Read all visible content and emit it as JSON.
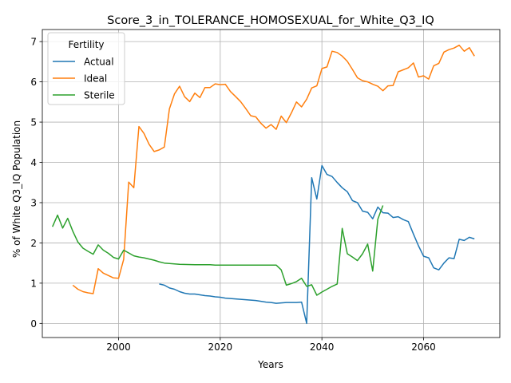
{
  "chart_data": {
    "type": "line",
    "title": "Score_3_in_TOLERANCE_HOMOSEXUAL_for_White_Q3_IQ",
    "xlabel": "Years",
    "ylabel": "% of White Q3_IQ Population",
    "xlim": [
      1985,
      2075
    ],
    "ylim": [
      -0.35,
      7.3
    ],
    "xticks": [
      2000,
      2020,
      2040,
      2060
    ],
    "yticks": [
      0,
      1,
      2,
      3,
      4,
      5,
      6,
      7
    ],
    "grid": true,
    "legend": {
      "title": "Fertility",
      "placement": "top-left"
    },
    "series": [
      {
        "name": "Actual",
        "color": "#1f77b4",
        "points": [
          [
            2008,
            0.98
          ],
          [
            2009,
            0.95
          ],
          [
            2010,
            0.88
          ],
          [
            2011,
            0.85
          ],
          [
            2012,
            0.79
          ],
          [
            2013,
            0.75
          ],
          [
            2014,
            0.73
          ],
          [
            2015,
            0.73
          ],
          [
            2016,
            0.71
          ],
          [
            2017,
            0.69
          ],
          [
            2018,
            0.68
          ],
          [
            2019,
            0.66
          ],
          [
            2020,
            0.65
          ],
          [
            2021,
            0.63
          ],
          [
            2022,
            0.62
          ],
          [
            2023,
            0.61
          ],
          [
            2024,
            0.6
          ],
          [
            2025,
            0.59
          ],
          [
            2026,
            0.58
          ],
          [
            2027,
            0.57
          ],
          [
            2028,
            0.55
          ],
          [
            2029,
            0.53
          ],
          [
            2030,
            0.52
          ],
          [
            2031,
            0.5
          ],
          [
            2032,
            0.51
          ],
          [
            2033,
            0.52
          ],
          [
            2034,
            0.52
          ],
          [
            2035,
            0.52
          ],
          [
            2036,
            0.53
          ],
          [
            2037,
            0.0
          ],
          [
            2038,
            3.62
          ],
          [
            2039,
            3.09
          ],
          [
            2040,
            3.92
          ],
          [
            2041,
            3.7
          ],
          [
            2042,
            3.65
          ],
          [
            2043,
            3.5
          ],
          [
            2044,
            3.37
          ],
          [
            2045,
            3.27
          ],
          [
            2046,
            3.05
          ],
          [
            2047,
            3.0
          ],
          [
            2048,
            2.79
          ],
          [
            2049,
            2.76
          ],
          [
            2050,
            2.6
          ],
          [
            2051,
            2.89
          ],
          [
            2052,
            2.75
          ],
          [
            2053,
            2.74
          ],
          [
            2054,
            2.63
          ],
          [
            2055,
            2.65
          ],
          [
            2056,
            2.58
          ],
          [
            2057,
            2.53
          ],
          [
            2058,
            2.22
          ],
          [
            2059,
            1.93
          ],
          [
            2060,
            1.67
          ],
          [
            2061,
            1.63
          ],
          [
            2062,
            1.38
          ],
          [
            2063,
            1.33
          ],
          [
            2064,
            1.5
          ],
          [
            2065,
            1.63
          ],
          [
            2066,
            1.61
          ],
          [
            2067,
            2.09
          ],
          [
            2068,
            2.06
          ],
          [
            2069,
            2.14
          ],
          [
            2070,
            2.1
          ]
        ]
      },
      {
        "name": "Ideal",
        "color": "#ff7f0e",
        "points": [
          [
            1991,
            0.95
          ],
          [
            1992,
            0.85
          ],
          [
            1993,
            0.79
          ],
          [
            1994,
            0.76
          ],
          [
            1995,
            0.74
          ],
          [
            1996,
            1.36
          ],
          [
            1997,
            1.25
          ],
          [
            1998,
            1.19
          ],
          [
            1999,
            1.13
          ],
          [
            2000,
            1.12
          ],
          [
            2001,
            1.59
          ],
          [
            2002,
            3.51
          ],
          [
            2003,
            3.37
          ],
          [
            2004,
            4.89
          ],
          [
            2005,
            4.72
          ],
          [
            2006,
            4.45
          ],
          [
            2007,
            4.27
          ],
          [
            2008,
            4.31
          ],
          [
            2009,
            4.38
          ],
          [
            2010,
            5.33
          ],
          [
            2011,
            5.7
          ],
          [
            2012,
            5.89
          ],
          [
            2013,
            5.63
          ],
          [
            2014,
            5.51
          ],
          [
            2015,
            5.72
          ],
          [
            2016,
            5.61
          ],
          [
            2017,
            5.86
          ],
          [
            2018,
            5.86
          ],
          [
            2019,
            5.95
          ],
          [
            2020,
            5.93
          ],
          [
            2021,
            5.94
          ],
          [
            2022,
            5.76
          ],
          [
            2023,
            5.64
          ],
          [
            2024,
            5.51
          ],
          [
            2025,
            5.34
          ],
          [
            2026,
            5.16
          ],
          [
            2027,
            5.13
          ],
          [
            2028,
            4.97
          ],
          [
            2029,
            4.85
          ],
          [
            2030,
            4.94
          ],
          [
            2031,
            4.82
          ],
          [
            2032,
            5.15
          ],
          [
            2033,
            4.99
          ],
          [
            2034,
            5.23
          ],
          [
            2035,
            5.5
          ],
          [
            2036,
            5.38
          ],
          [
            2037,
            5.57
          ],
          [
            2038,
            5.85
          ],
          [
            2039,
            5.9
          ],
          [
            2040,
            6.33
          ],
          [
            2041,
            6.37
          ],
          [
            2042,
            6.76
          ],
          [
            2043,
            6.73
          ],
          [
            2044,
            6.64
          ],
          [
            2045,
            6.51
          ],
          [
            2046,
            6.31
          ],
          [
            2047,
            6.1
          ],
          [
            2048,
            6.03
          ],
          [
            2049,
            6.0
          ],
          [
            2050,
            5.94
          ],
          [
            2051,
            5.89
          ],
          [
            2052,
            5.78
          ],
          [
            2053,
            5.9
          ],
          [
            2054,
            5.91
          ],
          [
            2055,
            6.25
          ],
          [
            2056,
            6.3
          ],
          [
            2057,
            6.35
          ],
          [
            2058,
            6.47
          ],
          [
            2059,
            6.12
          ],
          [
            2060,
            6.15
          ],
          [
            2061,
            6.07
          ],
          [
            2062,
            6.4
          ],
          [
            2063,
            6.46
          ],
          [
            2064,
            6.74
          ],
          [
            2065,
            6.8
          ],
          [
            2066,
            6.84
          ],
          [
            2067,
            6.91
          ],
          [
            2068,
            6.76
          ],
          [
            2069,
            6.85
          ],
          [
            2070,
            6.64
          ]
        ]
      },
      {
        "name": "Sterile",
        "color": "#2ca02c",
        "points": [
          [
            1987,
            2.4
          ],
          [
            1988,
            2.69
          ],
          [
            1989,
            2.37
          ],
          [
            1990,
            2.61
          ],
          [
            1991,
            2.29
          ],
          [
            1992,
            2.02
          ],
          [
            1993,
            1.87
          ],
          [
            1994,
            1.79
          ],
          [
            1995,
            1.72
          ],
          [
            1996,
            1.95
          ],
          [
            1997,
            1.82
          ],
          [
            1998,
            1.74
          ],
          [
            1999,
            1.64
          ],
          [
            2000,
            1.6
          ],
          [
            2001,
            1.82
          ],
          [
            2002,
            1.75
          ],
          [
            2003,
            1.68
          ],
          [
            2004,
            1.65
          ],
          [
            2005,
            1.63
          ],
          [
            2006,
            1.6
          ],
          [
            2007,
            1.57
          ],
          [
            2008,
            1.53
          ],
          [
            2009,
            1.5
          ],
          [
            2010,
            1.49
          ],
          [
            2012,
            1.47
          ],
          [
            2015,
            1.46
          ],
          [
            2018,
            1.46
          ],
          [
            2019,
            1.45
          ],
          [
            2025,
            1.45
          ],
          [
            2031,
            1.45
          ],
          [
            2032,
            1.33
          ],
          [
            2033,
            0.95
          ],
          [
            2034,
            0.99
          ],
          [
            2035,
            1.04
          ],
          [
            2036,
            1.12
          ],
          [
            2037,
            0.92
          ],
          [
            2038,
            0.96
          ],
          [
            2039,
            0.7
          ],
          [
            2040,
            0.78
          ],
          [
            2041,
            0.85
          ],
          [
            2042,
            0.92
          ],
          [
            2043,
            0.98
          ],
          [
            2044,
            2.36
          ],
          [
            2045,
            1.73
          ],
          [
            2046,
            1.65
          ],
          [
            2047,
            1.56
          ],
          [
            2048,
            1.73
          ],
          [
            2049,
            1.97
          ],
          [
            2050,
            1.3
          ],
          [
            2051,
            2.59
          ],
          [
            2052,
            2.93
          ]
        ]
      }
    ]
  }
}
